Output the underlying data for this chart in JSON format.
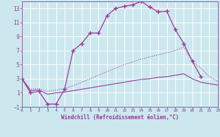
{
  "xlabel": "Windchill (Refroidissement éolien,°C)",
  "bg_color": "#cce8ee",
  "line_color": "#993399",
  "grid_color": "#ffffff",
  "xlim": [
    0,
    23
  ],
  "ylim": [
    -1,
    14
  ],
  "xticks": [
    0,
    1,
    2,
    3,
    4,
    5,
    6,
    7,
    8,
    9,
    10,
    11,
    12,
    13,
    14,
    15,
    16,
    17,
    18,
    19,
    20,
    21,
    22,
    23
  ],
  "yticks": [
    -1,
    1,
    3,
    5,
    7,
    9,
    11,
    13
  ],
  "series": [
    {
      "x": [
        0,
        1,
        2,
        3,
        4,
        5,
        6,
        7,
        8,
        9,
        10,
        11,
        12,
        13,
        14,
        15,
        16,
        17,
        18,
        19,
        20,
        21
      ],
      "y": [
        3,
        1,
        1.2,
        -0.6,
        -0.6,
        1.5,
        7.0,
        8.0,
        9.5,
        9.5,
        12.0,
        13.0,
        13.3,
        13.5,
        14.0,
        13.2,
        12.5,
        12.6,
        10.0,
        8.0,
        5.5,
        3.3
      ],
      "style": "-",
      "marker": "+"
    },
    {
      "x": [
        0,
        1,
        2,
        3,
        4,
        5,
        6,
        7,
        8,
        9,
        10,
        11,
        12,
        13,
        14,
        15,
        16,
        17,
        18,
        19,
        20,
        21,
        22,
        23
      ],
      "y": [
        3.0,
        1.5,
        1.6,
        1.2,
        1.4,
        1.6,
        2.0,
        2.5,
        3.0,
        3.5,
        4.0,
        4.5,
        5.0,
        5.4,
        5.8,
        6.1,
        6.4,
        6.7,
        7.0,
        7.5,
        5.5,
        4.5,
        3.3,
        2.6
      ],
      "style": ":",
      "marker": null
    },
    {
      "x": [
        0,
        1,
        2,
        3,
        4,
        5,
        6,
        7,
        8,
        9,
        10,
        11,
        12,
        13,
        14,
        15,
        16,
        17,
        18,
        19,
        20,
        21,
        22,
        23
      ],
      "y": [
        3.0,
        1.3,
        1.4,
        0.8,
        1.0,
        1.1,
        1.3,
        1.5,
        1.7,
        1.9,
        2.1,
        2.3,
        2.5,
        2.7,
        2.9,
        3.0,
        3.2,
        3.3,
        3.5,
        3.7,
        3.0,
        2.5,
        2.3,
        2.1
      ],
      "style": "-",
      "marker": null
    }
  ]
}
